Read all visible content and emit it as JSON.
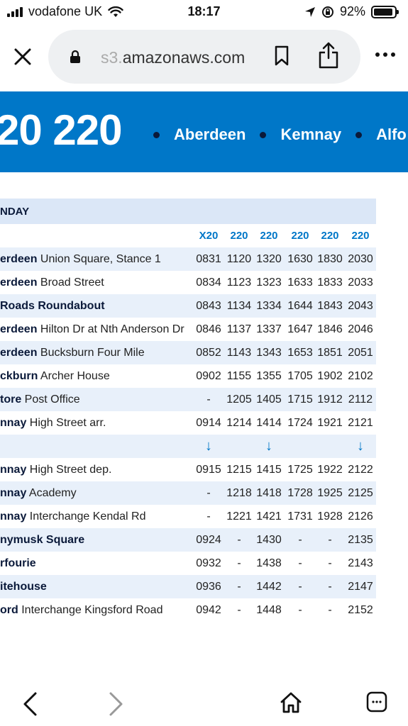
{
  "status": {
    "carrier": "vodafone UK",
    "time": "18:17",
    "battery": "92%",
    "battery_level": 0.92
  },
  "browser": {
    "url_faded": "s3.",
    "url": "amazonaws.com"
  },
  "banner": {
    "route_title": "20 220",
    "stops": [
      "Aberdeen",
      "Kemnay",
      "Alfo"
    ]
  },
  "timetable": {
    "day": "NDAY",
    "routes": [
      "X20",
      "220",
      "220",
      "220",
      "220",
      "220"
    ],
    "rows": [
      {
        "bold": "erdeen",
        "rest": " Union Square, Stance 1",
        "times": [
          "0831",
          "1120",
          "1320",
          "1630",
          "1830",
          "2030"
        ],
        "shaded": true
      },
      {
        "bold": "erdeen",
        "rest": " Broad Street",
        "times": [
          "0834",
          "1123",
          "1323",
          "1633",
          "1833",
          "2033"
        ],
        "shaded": false
      },
      {
        "bold": "Roads Roundabout",
        "rest": "",
        "times": [
          "0843",
          "1134",
          "1334",
          "1644",
          "1843",
          "2043"
        ],
        "shaded": true
      },
      {
        "bold": "erdeen",
        "rest": " Hilton Dr at Nth Anderson Dr",
        "times": [
          "0846",
          "1137",
          "1337",
          "1647",
          "1846",
          "2046"
        ],
        "shaded": false
      },
      {
        "bold": "erdeen",
        "rest": " Bucksburn Four Mile",
        "times": [
          "0852",
          "1143",
          "1343",
          "1653",
          "1851",
          "2051"
        ],
        "shaded": true
      },
      {
        "bold": "ckburn",
        "rest": " Archer House",
        "times": [
          "0902",
          "1155",
          "1355",
          "1705",
          "1902",
          "2102"
        ],
        "shaded": false
      },
      {
        "bold": "tore",
        "rest": " Post Office",
        "times": [
          "-",
          "1205",
          "1405",
          "1715",
          "1912",
          "2112"
        ],
        "shaded": true
      },
      {
        "bold": "nnay",
        "rest": " High Street arr.",
        "times": [
          "0914",
          "1214",
          "1414",
          "1724",
          "1921",
          "2121"
        ],
        "shaded": false
      }
    ],
    "arrows": [
      "↓",
      "",
      "↓",
      "",
      "",
      "↓"
    ],
    "rows2": [
      {
        "bold": "nnay",
        "rest": " High Street dep.",
        "times": [
          "0915",
          "1215",
          "1415",
          "1725",
          "1922",
          "2122"
        ],
        "shaded": false
      },
      {
        "bold": "nnay",
        "rest": " Academy",
        "times": [
          "-",
          "1218",
          "1418",
          "1728",
          "1925",
          "2125"
        ],
        "shaded": true
      },
      {
        "bold": "nnay",
        "rest": " Interchange Kendal Rd",
        "times": [
          "-",
          "1221",
          "1421",
          "1731",
          "1928",
          "2126"
        ],
        "shaded": false
      },
      {
        "bold": "nymusk Square",
        "rest": "",
        "times": [
          "0924",
          "-",
          "1430",
          "-",
          "-",
          "2135"
        ],
        "shaded": true
      },
      {
        "bold": "rfourie",
        "rest": "",
        "times": [
          "0932",
          "-",
          "1438",
          "-",
          "-",
          "2143"
        ],
        "shaded": false
      },
      {
        "bold": "itehouse",
        "rest": "",
        "times": [
          "0936",
          "-",
          "1442",
          "-",
          "-",
          "2147"
        ],
        "shaded": true
      },
      {
        "bold": "ord",
        "rest": " Interchange Kingsford Road",
        "times": [
          "0942",
          "-",
          "1448",
          "-",
          "-",
          "2152"
        ],
        "shaded": false
      }
    ]
  },
  "icons": {
    "close": "close-icon",
    "lock": "lock-icon",
    "bookmark": "bookmark-icon",
    "share": "share-icon",
    "more": "more-icon",
    "back": "back-icon",
    "forward": "forward-icon",
    "home": "home-icon",
    "tabs": "tabs-icon"
  },
  "colors": {
    "brand_blue": "#0077c8",
    "row_shade": "#e8f0fa",
    "header_shade": "#dbe7f7"
  }
}
